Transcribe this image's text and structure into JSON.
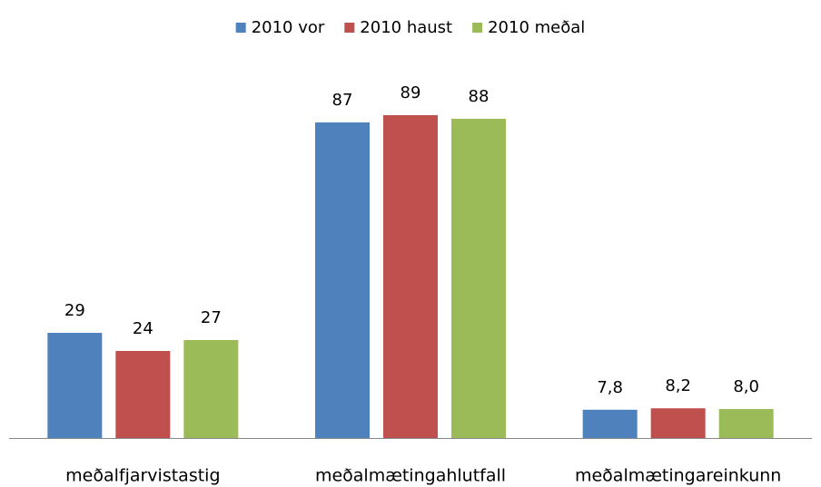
{
  "chart_data": {
    "type": "bar",
    "categories": [
      "meðalfjarvistastig",
      "meðalmætingahlutfall",
      "meðalmætingareinkunn"
    ],
    "series": [
      {
        "name": "2010 vor",
        "color": "#4f81bd",
        "values": [
          29,
          87,
          7.8
        ],
        "value_labels": [
          "29",
          "87",
          "7,8"
        ]
      },
      {
        "name": "2010 haust",
        "color": "#c0504d",
        "values": [
          24,
          89,
          8.2
        ],
        "value_labels": [
          "24",
          "89",
          "8,2"
        ]
      },
      {
        "name": "2010 meðal",
        "color": "#9bbb59",
        "values": [
          27,
          88,
          8.0
        ],
        "value_labels": [
          "27",
          "88",
          "8,0"
        ]
      }
    ],
    "legend": "top"
  }
}
